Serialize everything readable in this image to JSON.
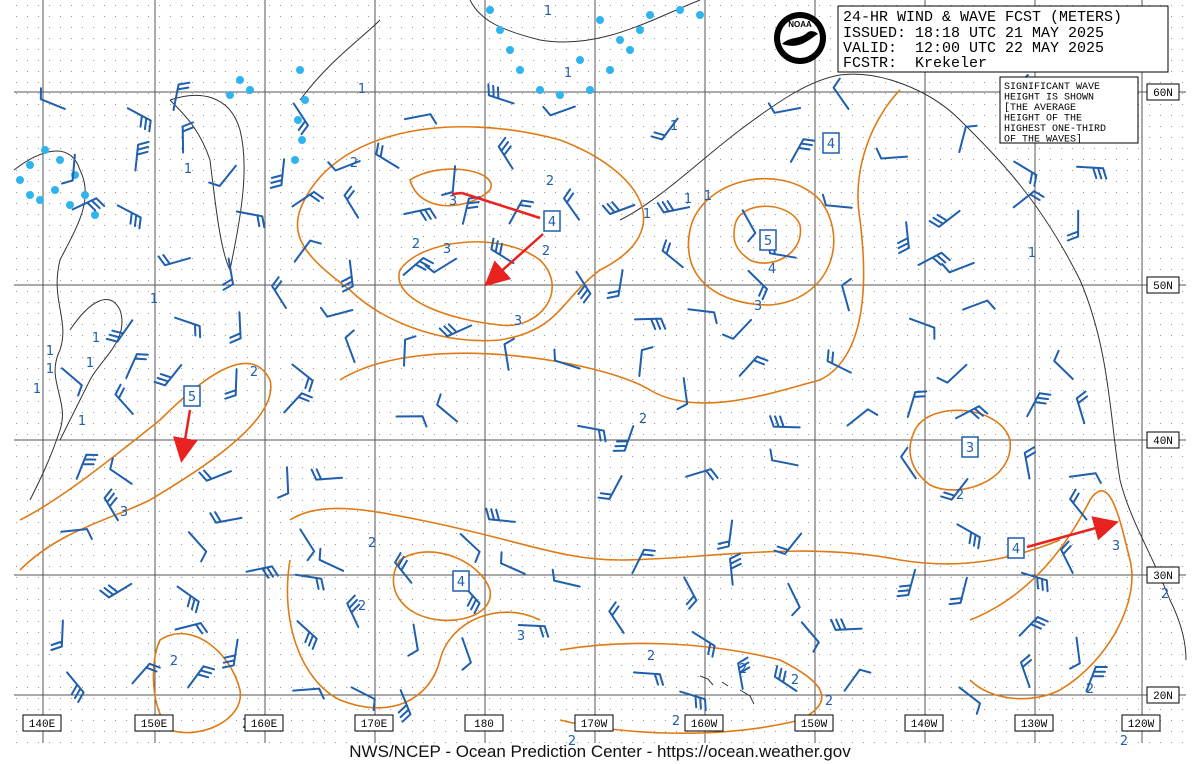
{
  "header": {
    "title": "24-HR WIND & WAVE FCST (METERS)",
    "issued": "ISSUED: 18:18 UTC 21 MAY 2025",
    "valid": "VALID:  12:00 UTC 22 MAY 2025",
    "forecaster": "FCSTR:  Krekeler"
  },
  "logo": "NOAA",
  "note": [
    "SIGNIFICANT WAVE",
    "HEIGHT IS SHOWN",
    "[THE AVERAGE",
    "HEIGHT OF THE",
    "HIGHEST ONE-THIRD",
    "OF THE WAVES]"
  ],
  "longitude_labels": [
    "140E",
    "150E",
    "160E",
    "170E",
    "180",
    "170W",
    "160W",
    "150W",
    "140W",
    "130W",
    "120W"
  ],
  "latitude_labels": [
    "60N",
    "50N",
    "40N",
    "30N",
    "20N"
  ],
  "wave_maxima": [
    "4",
    "4",
    "5",
    "5",
    "3",
    "4",
    "4"
  ],
  "contour_labels": [
    "1",
    "1",
    "1",
    "1",
    "1",
    "2",
    "2",
    "3",
    "1",
    "1",
    "1",
    "2",
    "3",
    "2",
    "1",
    "4",
    "1",
    "3",
    "3",
    "1",
    "1",
    "1",
    "1",
    "1",
    "2",
    "1",
    "2",
    "2",
    "3",
    "2",
    "3",
    "2",
    "2",
    "3",
    "2",
    "2",
    "2",
    "2",
    "2",
    "2",
    "2",
    "2",
    "2",
    "2"
  ],
  "footer": "NWS/NCEP - Ocean Prediction Center - https://ocean.weather.gov"
}
